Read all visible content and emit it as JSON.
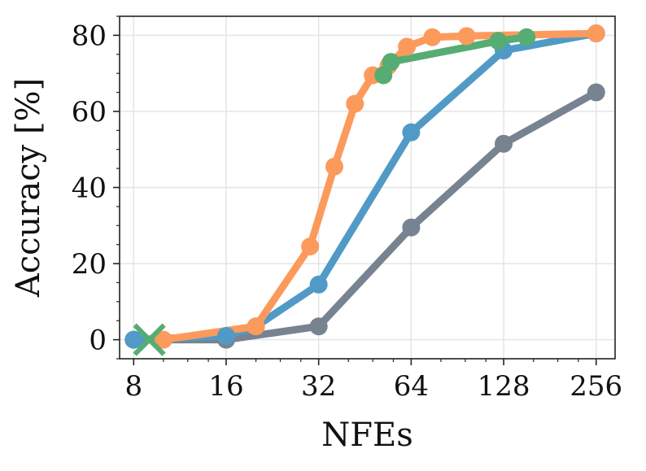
{
  "chart_data": {
    "type": "line",
    "xlabel": "NFEs",
    "ylabel": "Accuracy [%]",
    "x_scale": "log2",
    "xlim": [
      7.2,
      295
    ],
    "ylim": [
      -5,
      85
    ],
    "x_ticks": [
      8,
      16,
      32,
      64,
      128,
      256
    ],
    "x_tick_labels": [
      "8",
      "16",
      "32",
      "64",
      "128",
      "256"
    ],
    "y_ticks": [
      0,
      20,
      40,
      60,
      80
    ],
    "y_tick_labels": [
      "0",
      "20",
      "40",
      "60",
      "80"
    ],
    "grid": true,
    "series": [
      {
        "name": "gray",
        "color": "#778390",
        "x": [
          8,
          16,
          32,
          64,
          128,
          256
        ],
        "y": [
          0,
          0,
          3.5,
          29.5,
          51.5,
          65
        ]
      },
      {
        "name": "blue",
        "color": "#519ac6",
        "x": [
          8,
          16,
          20,
          32,
          64,
          128,
          256
        ],
        "y": [
          0,
          1,
          3.5,
          14.5,
          54.5,
          76,
          80.5
        ]
      },
      {
        "name": "orange",
        "color": "#fc9a5c",
        "x": [
          10,
          20,
          30,
          36,
          42,
          48,
          54,
          62,
          75,
          97,
          256
        ],
        "y": [
          0,
          3.5,
          24.5,
          45.5,
          62,
          69.5,
          72,
          77,
          79.5,
          79.8,
          80.5
        ]
      },
      {
        "name": "green",
        "color": "#55ad73",
        "x": [
          52,
          55,
          123,
          152
        ],
        "y": [
          69.5,
          73,
          78.5,
          79.5
        ]
      }
    ],
    "markers": [
      {
        "name": "failure-cross",
        "symbol": "x",
        "color": "#55ad73",
        "x": 9,
        "y": 0
      }
    ]
  }
}
